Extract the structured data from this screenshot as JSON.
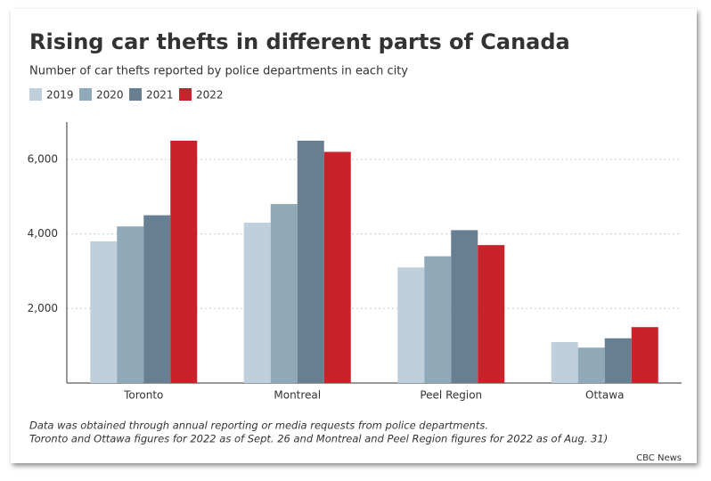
{
  "chart_data": {
    "type": "bar",
    "title": "Rising car thefts in different parts of Canada",
    "subtitle": "Number of car thefts reported by police departments in each city",
    "categories": [
      "Toronto",
      "Montreal",
      "Peel Region",
      "Ottawa"
    ],
    "series": [
      {
        "name": "2019",
        "color": "#bfd0dc",
        "values": [
          3800,
          4300,
          3100,
          1100
        ]
      },
      {
        "name": "2020",
        "color": "#8fa9b9",
        "values": [
          4200,
          4800,
          3400,
          950
        ]
      },
      {
        "name": "2021",
        "color": "#687f92",
        "values": [
          4500,
          6500,
          4100,
          1200
        ]
      },
      {
        "name": "2022",
        "color": "#c8232b",
        "values": [
          6500,
          6200,
          3700,
          1500
        ]
      }
    ],
    "ylim": [
      0,
      7000
    ],
    "yticks": [
      {
        "value": 2000,
        "label": "2,000"
      },
      {
        "value": 4000,
        "label": "4,000"
      },
      {
        "value": 6000,
        "label": "6,000"
      }
    ],
    "grid": true,
    "legend": "top-left",
    "notes": [
      "Data was obtained through annual reporting or media requests from police departments.",
      "Toronto and Ottawa figures for 2022 as of Sept. 26 and Montreal and Peel Region figures for 2022 as of Aug. 31)"
    ],
    "source": "CBC News"
  }
}
